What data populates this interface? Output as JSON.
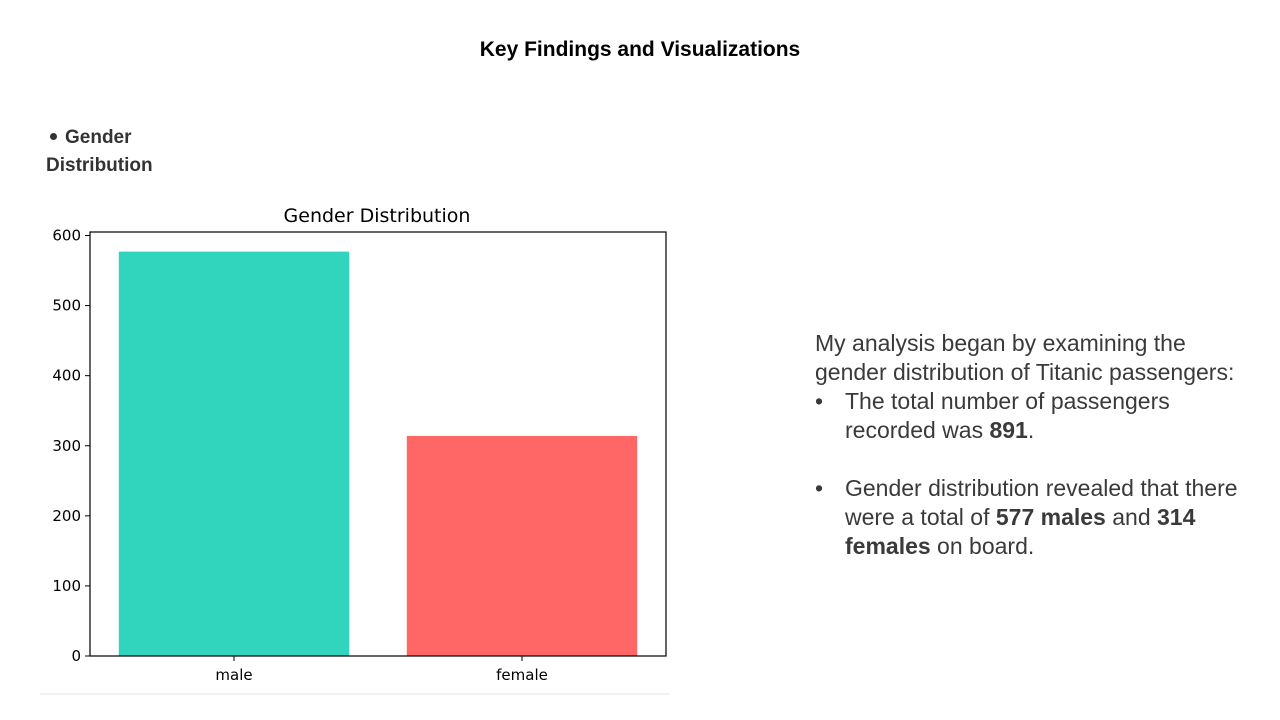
{
  "slide": {
    "title": "Key Findings and Visualizations",
    "section_heading": "Gender Distribution"
  },
  "description": {
    "intro": "My analysis began by examining the gender distribution of Titanic passengers:",
    "bullet1": {
      "prefix": "The total number of passengers recorded was ",
      "total": "891",
      "suffix": "."
    },
    "bullet2": {
      "prefix": "Gender distribution revealed that there were a total of  ",
      "males": "577 males",
      "middle": " and ",
      "females": "314 females",
      "suffix": " on board."
    }
  },
  "chart_data": {
    "type": "bar",
    "title": "Gender Distribution",
    "categories": [
      "male",
      "female"
    ],
    "values": [
      577,
      314
    ],
    "colors": [
      "#31d5be",
      "#ff6666"
    ],
    "xlabel": "",
    "ylabel": "",
    "ylim": [
      0,
      605
    ],
    "yticks": [
      0,
      100,
      200,
      300,
      400,
      500,
      600
    ],
    "grid": false,
    "legend": "none"
  }
}
